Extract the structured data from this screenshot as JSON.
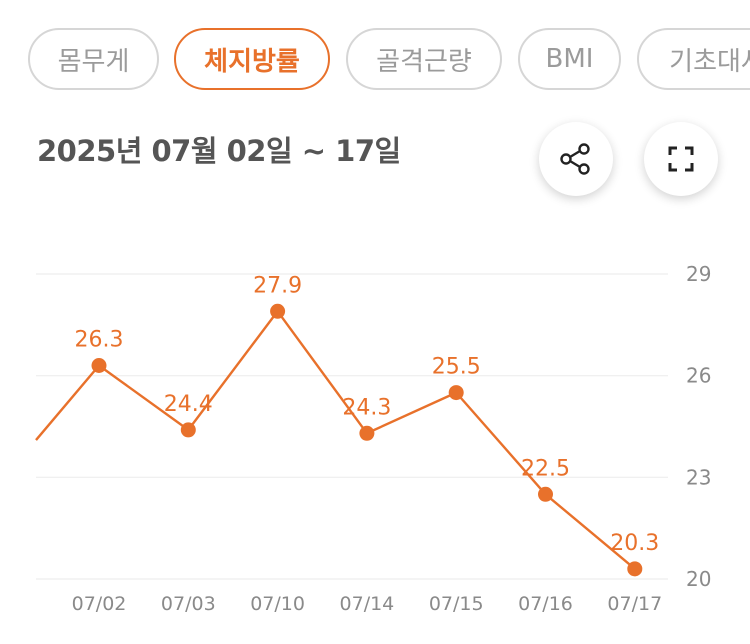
{
  "tabs": [
    {
      "label": "몸무게",
      "active": false
    },
    {
      "label": "체지방률",
      "active": true
    },
    {
      "label": "골격근량",
      "active": false
    },
    {
      "label": "BMI",
      "active": false
    },
    {
      "label": "기초대사",
      "active": false
    }
  ],
  "date_range": "2025년 07월 02일 ~ 17일",
  "icons": {
    "share": "share-icon",
    "expand": "fullscreen-icon"
  },
  "colors": {
    "accent": "#e8712b",
    "grid": "#eeeeee",
    "tick": "#8a8a8a"
  },
  "chart_data": {
    "type": "line",
    "categories": [
      "07/02",
      "07/03",
      "07/10",
      "07/14",
      "07/15",
      "07/16",
      "07/17"
    ],
    "values": [
      26.3,
      24.4,
      27.9,
      24.3,
      25.5,
      22.5,
      20.3
    ],
    "value_labels": [
      "26.3",
      "24.4",
      "27.9",
      "24.3",
      "25.5",
      "22.5",
      "20.3"
    ],
    "incoming_line_from_left": true,
    "y_ticks": [
      "29",
      "26",
      "23",
      "20"
    ],
    "ylim": [
      20,
      29
    ],
    "y_axis_position": "right",
    "grid": true
  }
}
